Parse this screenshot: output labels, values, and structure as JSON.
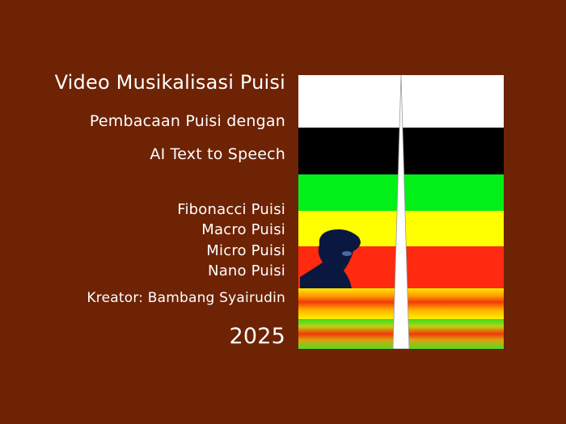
{
  "title": "Video Musikalisasi Puisi",
  "subtitle_line1": "Pembacaan Puisi dengan",
  "subtitle_line2": "AI Text to Speech",
  "forms": [
    "Fibonacci Puisi",
    "Macro Puisi",
    "Micro Puisi",
    "Nano Puisi"
  ],
  "creator": "Kreator: Bambang Syairudin",
  "year": "2025",
  "colors": {
    "background": "#6e2305",
    "band_white": "#ffffff",
    "band_black": "#000000",
    "band_green": "#00f018",
    "band_yellow": "#ffff00",
    "band_red": "#ff2a0f"
  }
}
